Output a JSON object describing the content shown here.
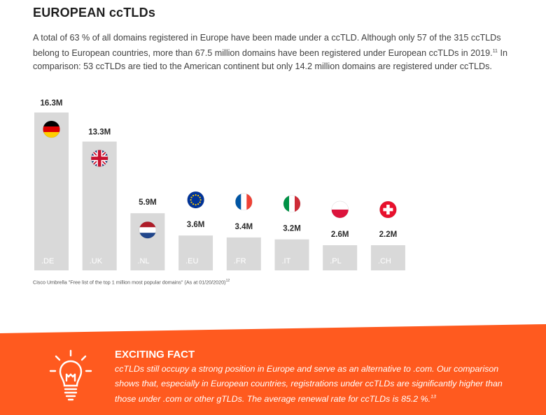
{
  "title": "EUROPEAN ccTLDs",
  "intro": {
    "text": "A total of 63 % of all domains registered in Europe have been made under a ccTLD. Although only 57 of the 315 ccTLDs belong to European countries, more than 67.5 million domains have been registered under European ccTLDs in 2019.",
    "ref": "11",
    "text2": " In comparison: 53 ccTLDs are tied to the American continent but only 14.2 million domains are registered under ccTLDs."
  },
  "chart_data": {
    "type": "bar",
    "categories": [
      ".DE",
      ".UK",
      ".NL",
      ".EU",
      ".FR",
      ".IT",
      ".PL",
      ".CH"
    ],
    "values": [
      16.3,
      13.3,
      5.9,
      3.6,
      3.4,
      3.2,
      2.6,
      2.2
    ],
    "value_labels": [
      "16.3M",
      "13.3M",
      "5.9M",
      "3.6M",
      "3.4M",
      "3.2M",
      "2.6M",
      "2.2M"
    ],
    "flags": [
      "germany-flag",
      "uk-flag",
      "netherlands-flag",
      "eu-flag",
      "france-flag",
      "italy-flag",
      "poland-flag",
      "switzerland-flag"
    ],
    "bar_color": "#d9d9d9",
    "ylim": [
      0,
      16.3
    ]
  },
  "source": {
    "text": "Cisco Umbrella \"Free list of the top 1 million most popular domains\" (As at 01/20/2020)",
    "ref": "12"
  },
  "fact": {
    "heading": "EXCITING FACT",
    "text": "ccTLDs still occupy a strong position in Europe and serve as an alternative to .com. Our comparison shows that, especially in European countries, registrations under ccTLDs are significantly higher than those under .com or other gTLDs. The average renewal rate for ccTLDs is 85.2 %.",
    "ref": "13",
    "icon": "lightbulb-icon",
    "color": "#ff5a1f"
  }
}
